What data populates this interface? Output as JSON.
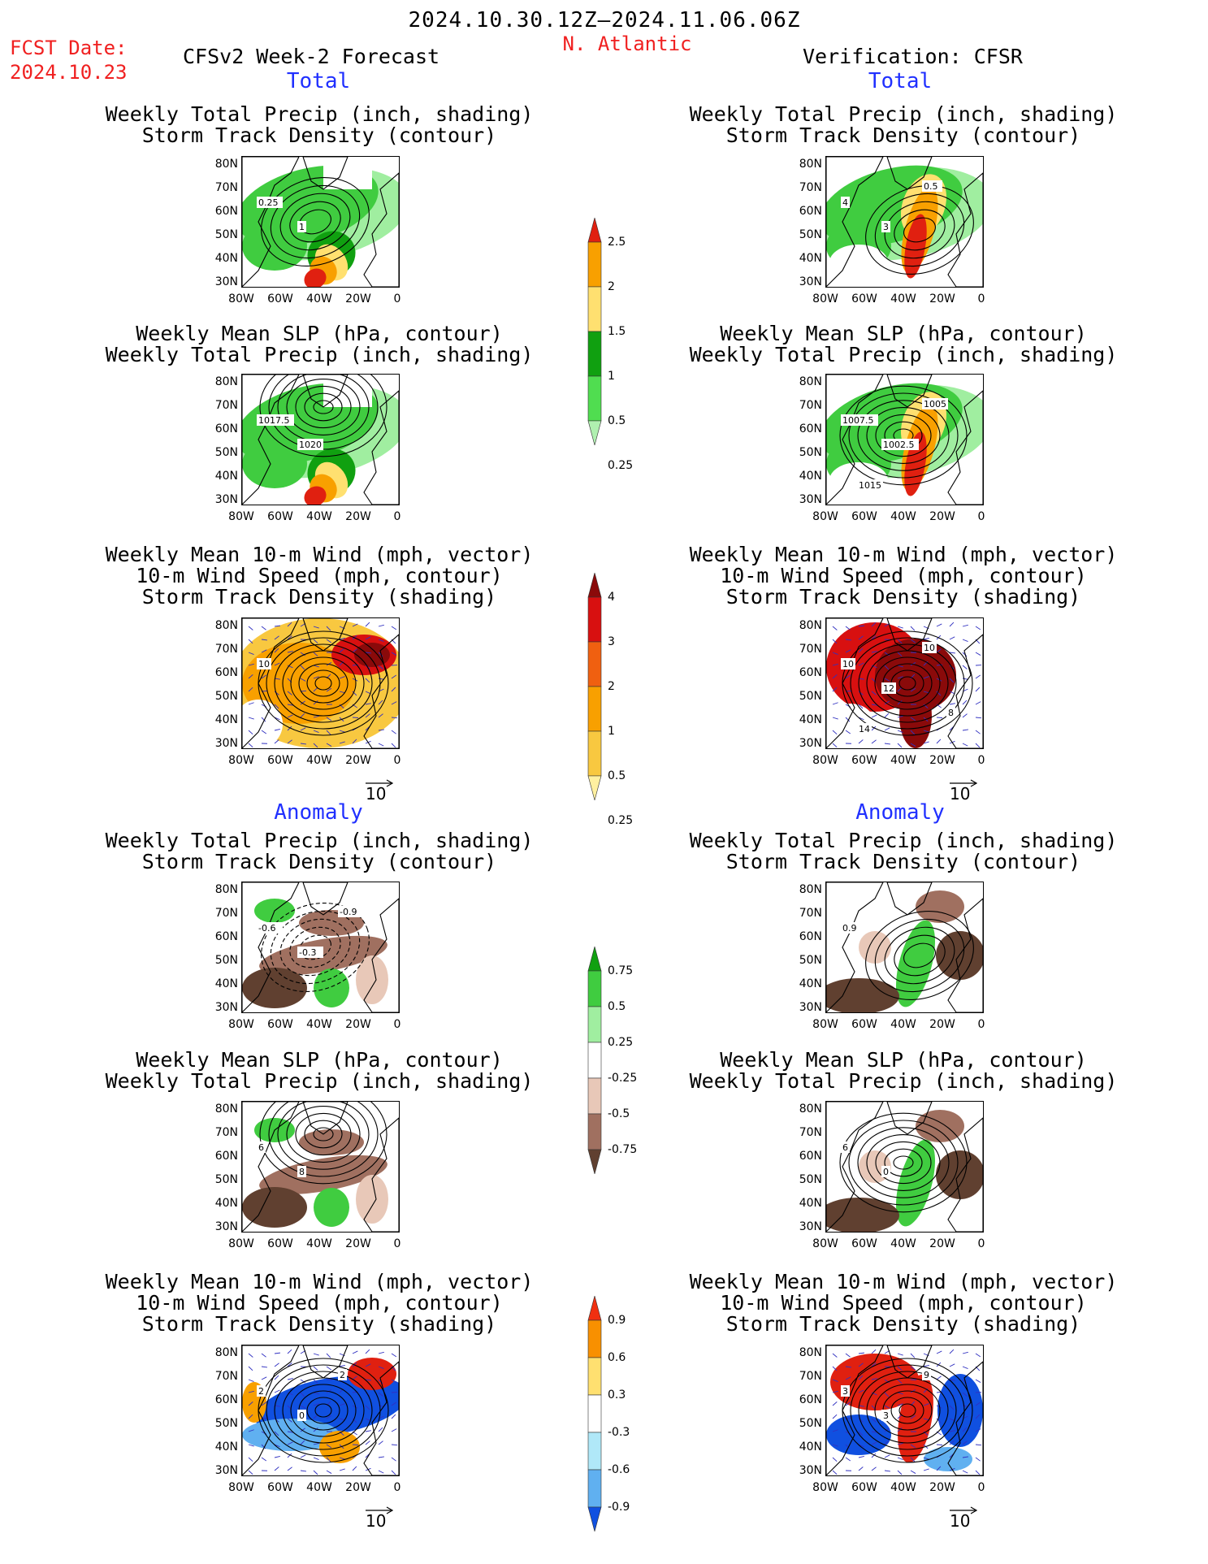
{
  "header": {
    "date_range": "2024.10.30.12Z–2024.11.06.06Z",
    "fcst_label": "FCST Date:",
    "fcst_date": "2024.10.23",
    "region": "N. Atlantic",
    "left_title": "CFSv2 Week-2 Forecast",
    "right_title": "Verification: CFSR"
  },
  "sections": {
    "total": "Total",
    "anomaly": "Anomaly"
  },
  "panel_titles": {
    "precip_track": [
      "Weekly Total Precip (inch, shading)",
      "Storm Track Density (contour)"
    ],
    "slp_precip": [
      "Weekly Mean SLP (hPa, contour)",
      "Weekly Total Precip (inch, shading)"
    ],
    "wind_track": [
      "Weekly Mean 10-m Wind (mph, vector)",
      "10-m Wind Speed (mph, contour)",
      "Storm Track Density (shading)"
    ]
  },
  "axes": {
    "lat_labels": [
      "80N",
      "70N",
      "60N",
      "50N",
      "40N",
      "30N"
    ],
    "lon_labels": [
      "80W",
      "60W",
      "40W",
      "20W",
      "0"
    ]
  },
  "vector_ref": "10",
  "colorbars": {
    "precip_total": {
      "labels": [
        "2.5",
        "2",
        "1.5",
        "1",
        "0.5",
        "0.25"
      ],
      "colors": [
        "#e02010",
        "#f8a000",
        "#ffe070",
        "#10a010",
        "#50dd50",
        "#b0f0b0"
      ]
    },
    "track_total": {
      "labels": [
        "4",
        "3",
        "2",
        "1",
        "0.5",
        "0.25"
      ],
      "colors": [
        "#8a0a0a",
        "#d81010",
        "#f06010",
        "#f8a000",
        "#f8c840",
        "#fff0a0"
      ]
    },
    "precip_anom": {
      "labels": [
        "0.75",
        "0.5",
        "0.25",
        "-0.25",
        "-0.5",
        "-0.75"
      ],
      "colors": [
        "#10a010",
        "#40cc40",
        "#a0eea0",
        "#ffffff",
        "#e8c8b8",
        "#a07060",
        "#604030"
      ]
    },
    "track_anom": {
      "labels": [
        "0.9",
        "0.6",
        "0.3",
        "-0.3",
        "-0.6",
        "-0.9"
      ],
      "colors": [
        "#f03010",
        "#f89000",
        "#ffe070",
        "#ffffff",
        "#b0e8f8",
        "#60b0f0",
        "#1050e0"
      ]
    }
  },
  "panel_labels": {
    "L1": [
      "0.25",
      "1"
    ],
    "R1": [
      "4",
      "3",
      "0.5"
    ],
    "L2": [
      "1017.5",
      "1020"
    ],
    "R2": [
      "1007.5",
      "1002.5",
      "1005",
      "1015"
    ],
    "L3": [
      "10"
    ],
    "R3": [
      "10",
      "12",
      "10",
      "14",
      "8"
    ],
    "L4": [
      "-0.6",
      "-0.3",
      "-0.9"
    ],
    "R4": [
      "0.9"
    ],
    "L5": [
      "6",
      "8"
    ],
    "R5": [
      "6",
      "0"
    ],
    "L6": [
      "2",
      "0",
      "2"
    ],
    "R6": [
      "3",
      "3",
      "9"
    ]
  }
}
